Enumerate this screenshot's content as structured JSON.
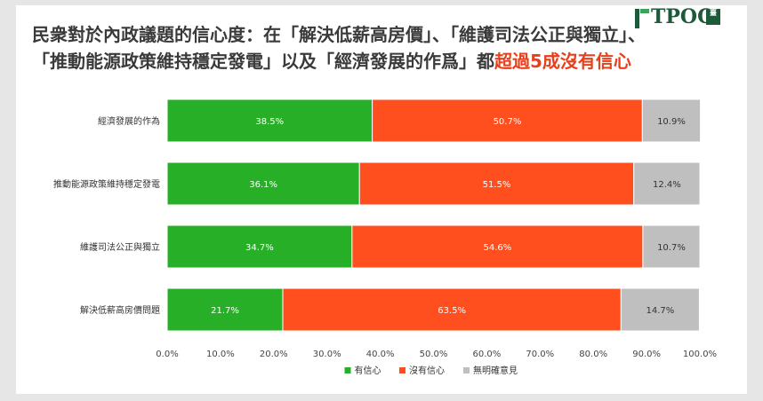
{
  "title": {
    "line1": "民衆對於內政議題的信心度：在「解決低薪高房價」、「維護司法公正與獨立」、",
    "line2_prefix": "「推動能源政策維持穩定發電」以及「經濟發展的作爲」都",
    "line2_highlight": "超過5成沒有信心"
  },
  "logo": {
    "text": "TPOC",
    "badge": "臺"
  },
  "colors": {
    "confident": "#27b027",
    "not_confident": "#ff4f1f",
    "no_opinion": "#bfbfbf",
    "highlight": "#e8401c"
  },
  "chart_data": {
    "type": "bar",
    "orientation": "horizontal",
    "stacked": true,
    "categories": [
      "經濟發展的作為",
      "推動能源政策維持穩定發電",
      "維護司法公正與獨立",
      "解決低薪高房價問題"
    ],
    "series": [
      {
        "name": "有信心",
        "values": [
          38.5,
          36.1,
          34.7,
          21.7
        ],
        "labels": [
          "38.5%",
          "36.1%",
          "34.7%",
          "21.7%"
        ]
      },
      {
        "name": "沒有信心",
        "values": [
          50.7,
          51.5,
          54.6,
          63.5
        ],
        "labels": [
          "50.7%",
          "51.5%",
          "54.6%",
          "63.5%"
        ]
      },
      {
        "name": "無明確意見",
        "values": [
          10.9,
          12.4,
          10.7,
          14.7
        ],
        "labels": [
          "10.9%",
          "12.4%",
          "10.7%",
          "14.7%"
        ]
      }
    ],
    "xlim": [
      0,
      100
    ],
    "x_ticks": [
      "0.0%",
      "10.0%",
      "20.0%",
      "30.0%",
      "40.0%",
      "50.0%",
      "60.0%",
      "70.0%",
      "80.0%",
      "90.0%",
      "100.0%"
    ],
    "legend_position": "bottom",
    "grid": false
  }
}
